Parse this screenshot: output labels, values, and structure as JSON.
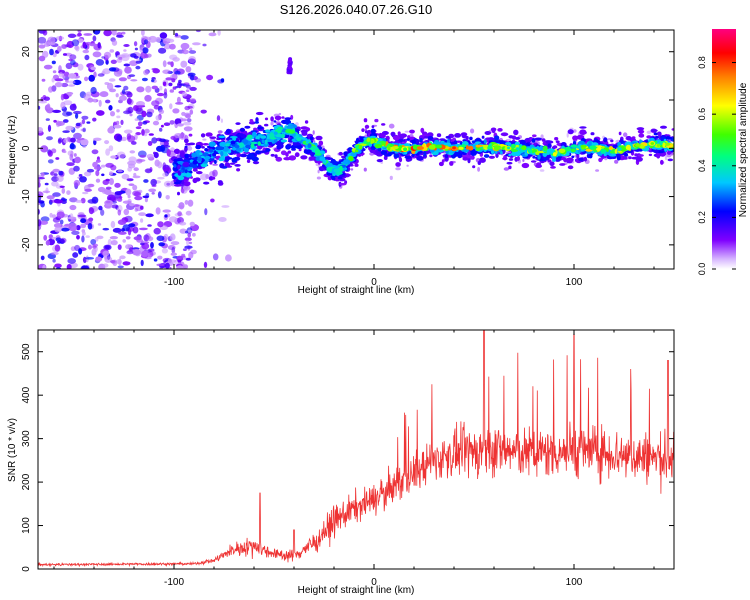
{
  "title": "S126.2026.040.07.26.G10",
  "colors": {
    "snr_line": "#ee3333",
    "axis": "#000000",
    "cmap": [
      "#ffffff",
      "#7f00ff",
      "#0000ff",
      "#00c8ff",
      "#00ff80",
      "#40ff00",
      "#ffff00",
      "#ff8000",
      "#ff0000",
      "#ff0080"
    ]
  },
  "chart_data": [
    {
      "type": "heatmap",
      "xlabel": "Height of straight line (km)",
      "ylabel": "Frequency (Hz)",
      "xlim": [
        -168,
        150
      ],
      "ylim": [
        -25,
        24.5
      ],
      "xticks": [
        -100,
        0,
        100
      ],
      "xtick_labels": [
        "-100",
        "0",
        "100"
      ],
      "yticks": [
        -20,
        -10,
        0,
        10,
        20
      ],
      "ytick_labels": [
        "-20",
        "-10",
        "0",
        "10",
        "20"
      ],
      "colorbar": {
        "label": "Normalized spectral amplitude",
        "range": [
          0,
          0.93
        ],
        "ticks": [
          0.0,
          0.2,
          0.4,
          0.6,
          0.8
        ],
        "tick_labels": [
          "0.0",
          "0.2",
          "0.4",
          "0.6",
          "0.8"
        ]
      },
      "ridge": {
        "x": [
          -95,
          -85,
          -75,
          -65,
          -55,
          -48,
          -42,
          -38,
          -34,
          -30,
          -26,
          -22,
          -18,
          -14,
          -10,
          -6,
          -2,
          2,
          6,
          12,
          20,
          30,
          40,
          50,
          60,
          70,
          80,
          90,
          100,
          110,
          120,
          130,
          140,
          148
        ],
        "y": [
          -4,
          -2,
          0,
          1,
          2,
          3,
          4,
          2,
          1,
          0,
          -2,
          -4,
          -5,
          -3,
          -1,
          1,
          2,
          1,
          0.5,
          0,
          0,
          0.3,
          0,
          0.2,
          0.3,
          0,
          -0.5,
          -1,
          0,
          0,
          -0.5,
          0.5,
          1,
          0.5
        ],
        "amplitude": [
          0.3,
          0.35,
          0.4,
          0.42,
          0.45,
          0.48,
          0.5,
          0.5,
          0.55,
          0.55,
          0.5,
          0.5,
          0.5,
          0.55,
          0.6,
          0.65,
          0.65,
          0.7,
          0.78,
          0.85,
          0.85,
          0.8,
          0.85,
          0.8,
          0.75,
          0.7,
          0.65,
          0.65,
          0.7,
          0.72,
          0.7,
          0.72,
          0.75,
          0.7
        ]
      },
      "noise_region_x": [
        -168,
        -90
      ],
      "spur": {
        "x": -42,
        "y": 17
      }
    },
    {
      "type": "line",
      "xlabel": "Height of straight line (km)",
      "ylabel": "SNR (10 * v/v)",
      "xlim": [
        -168,
        150
      ],
      "ylim": [
        0,
        550
      ],
      "xticks": [
        -100,
        0,
        100
      ],
      "xtick_labels": [
        "-100",
        "0",
        "100"
      ],
      "yticks": [
        0,
        100,
        200,
        300,
        400,
        500
      ],
      "ytick_labels": [
        "0",
        "100",
        "200",
        "300",
        "400",
        "500"
      ],
      "series": [
        {
          "name": "SNR",
          "envelope_x": [
            -168,
            -90,
            -80,
            -70,
            -60,
            -50,
            -40,
            -30,
            -20,
            -10,
            0,
            10,
            20,
            30,
            40,
            50,
            60,
            70,
            80,
            90,
            100,
            110,
            120,
            130,
            140,
            150
          ],
          "envelope_mean": [
            10,
            12,
            20,
            45,
            55,
            35,
            30,
            60,
            110,
            140,
            160,
            190,
            220,
            250,
            265,
            270,
            275,
            270,
            265,
            270,
            275,
            270,
            265,
            260,
            255,
            250
          ],
          "envelope_spread": [
            5,
            5,
            10,
            25,
            40,
            20,
            25,
            40,
            60,
            60,
            60,
            70,
            80,
            80,
            90,
            100,
            100,
            100,
            100,
            100,
            110,
            100,
            100,
            100,
            100,
            100
          ],
          "peaks": [
            {
              "x": -57,
              "y": 175
            },
            {
              "x": -40,
              "y": 90
            },
            {
              "x": 55,
              "y": 550
            },
            {
              "x": 100,
              "y": 540
            },
            {
              "x": 147,
              "y": 480
            }
          ]
        }
      ]
    }
  ]
}
